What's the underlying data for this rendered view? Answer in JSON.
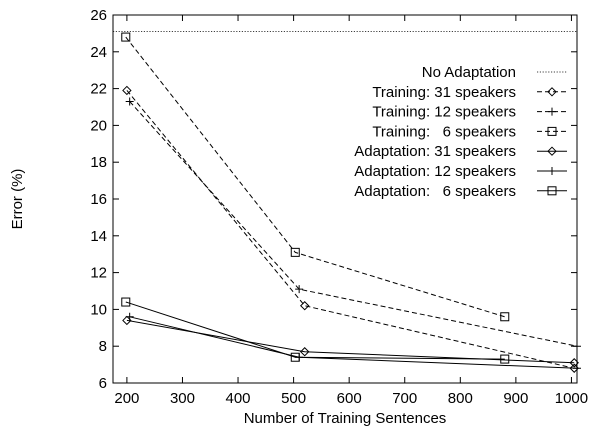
{
  "chart_data": {
    "type": "line",
    "xlabel": "Number of Training Sentences",
    "ylabel": "Error (%)",
    "xlim": [
      175,
      1010
    ],
    "ylim": [
      6,
      26
    ],
    "xticks": [
      200,
      300,
      400,
      500,
      600,
      700,
      800,
      900,
      1000
    ],
    "yticks": [
      6,
      8,
      10,
      12,
      14,
      16,
      18,
      20,
      22,
      24,
      26
    ],
    "legend_position": "top-right",
    "grid": false,
    "series": [
      {
        "name": "No Adaptation",
        "style": "dotted",
        "marker": "none",
        "points": [
          [
            175,
            25.1
          ],
          [
            1010,
            25.1
          ]
        ]
      },
      {
        "name": "Training: 31 speakers",
        "style": "dashed",
        "marker": "diamond",
        "points": [
          [
            200,
            21.9
          ],
          [
            520,
            10.2
          ],
          [
            1005,
            6.8
          ]
        ]
      },
      {
        "name": "Training: 12 speakers",
        "style": "dashed",
        "marker": "plus",
        "points": [
          [
            205,
            21.3
          ],
          [
            510,
            11.1
          ],
          [
            1010,
            8.0
          ]
        ]
      },
      {
        "name": "Training:   6 speakers",
        "style": "dashed",
        "marker": "square",
        "points": [
          [
            198,
            24.8
          ],
          [
            503,
            13.1
          ],
          [
            880,
            9.6
          ]
        ]
      },
      {
        "name": "Adaptation: 31 speakers",
        "style": "solid",
        "marker": "diamond",
        "points": [
          [
            200,
            9.4
          ],
          [
            520,
            7.7
          ],
          [
            1005,
            7.1
          ]
        ]
      },
      {
        "name": "Adaptation: 12 speakers",
        "style": "solid",
        "marker": "plus",
        "points": [
          [
            205,
            9.6
          ],
          [
            510,
            7.4
          ],
          [
            1010,
            6.8
          ]
        ]
      },
      {
        "name": "Adaptation:   6 speakers",
        "style": "solid",
        "marker": "square",
        "points": [
          [
            198,
            10.4
          ],
          [
            503,
            7.4
          ],
          [
            880,
            7.3
          ]
        ]
      }
    ]
  }
}
